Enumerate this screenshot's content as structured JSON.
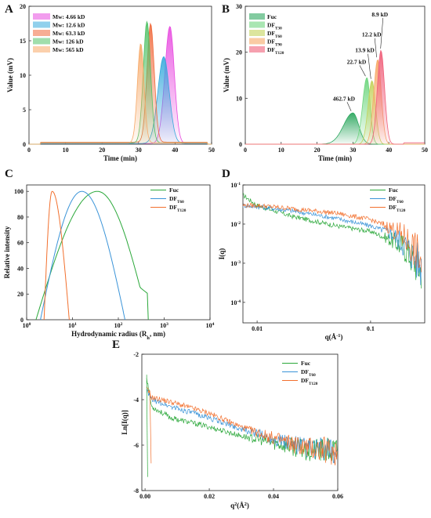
{
  "panels": {
    "A": {
      "label": "A",
      "chart_data": {
        "type": "area",
        "xlabel": "Time (min)",
        "ylabel": "Value (mV)",
        "xlim": [
          0,
          50
        ],
        "ylim": [
          0,
          20
        ],
        "xticks": [
          0,
          10,
          20,
          30,
          40,
          50
        ],
        "yticks": [
          0,
          5,
          10,
          15,
          20
        ],
        "series": [
          {
            "name": "Mw: 4.66 kD",
            "color": "#e84ce0",
            "peak": {
              "x": 38.6,
              "y": 17.0,
              "sl": 1.4,
              "sr": 1.2
            },
            "baseline": 0.1
          },
          {
            "name": "Mw: 12.6 kD",
            "color": "#35a9dc",
            "peak": {
              "x": 36.9,
              "y": 12.6,
              "sl": 1.6,
              "sr": 1.5
            },
            "baseline": 0.1
          },
          {
            "name": "Mw: 63.3 kD",
            "color": "#f06a3c",
            "peak": {
              "x": 33.3,
              "y": 17.2,
              "sl": 1.0,
              "sr": 1.0
            },
            "baseline": 0.3
          },
          {
            "name": "Mw: 126 kD",
            "color": "#52c267",
            "peak": {
              "x": 32.3,
              "y": 17.6,
              "sl": 1.0,
              "sr": 1.0
            },
            "baseline": 0.2
          },
          {
            "name": "Mw: 565 kD",
            "color": "#f7a968",
            "peak": {
              "x": 30.6,
              "y": 14.4,
              "sl": 0.9,
              "sr": 0.9
            },
            "baseline": 0.2
          }
        ]
      }
    },
    "B": {
      "label": "B",
      "chart_data": {
        "type": "area",
        "xlabel": "Time (min)",
        "ylabel": "Value (mV)",
        "xlim": [
          0,
          50
        ],
        "ylim": [
          0,
          30
        ],
        "xticks": [
          0,
          10,
          20,
          30,
          40,
          50
        ],
        "yticks": [
          0,
          10,
          20,
          30
        ],
        "series": [
          {
            "name": "Fuc",
            "sub": "",
            "color": "#2ea860",
            "peak": {
              "x": 30.0,
              "y": 6.8,
              "sl": 2.6,
              "sr": 1.6
            },
            "annotation": "462.7 kD"
          },
          {
            "name": "DF",
            "sub": "T30",
            "color": "#6fd67f",
            "peak": {
              "x": 33.9,
              "y": 14.5,
              "sl": 1.2,
              "sr": 0.9
            },
            "annotation": "22.7 kD"
          },
          {
            "name": "DF",
            "sub": "T60",
            "color": "#c4d45e",
            "peak": {
              "x": 35.3,
              "y": 13.8,
              "sl": 1.1,
              "sr": 1.0
            },
            "annotation": "13.9 kD"
          },
          {
            "name": "DF",
            "sub": "T90",
            "color": "#f7a968",
            "peak": {
              "x": 36.9,
              "y": 18.4,
              "sl": 1.1,
              "sr": 1.0
            },
            "annotation": "12.2 kD"
          },
          {
            "name": "DF",
            "sub": "T120",
            "color": "#f0607a",
            "peak": {
              "x": 37.8,
              "y": 20.4,
              "sl": 1.0,
              "sr": 1.0
            },
            "annotation": "8.9 kD"
          }
        ]
      }
    },
    "C": {
      "label": "C",
      "chart_data": {
        "type": "line",
        "xlabel": "Hydrodynamic radius (R",
        "xlabel_sub": "h",
        "xlabel_end": ", nm)",
        "ylabel": "Relative intensity",
        "xscale": "log",
        "xlim": [
          1,
          10000
        ],
        "ylim": [
          0,
          105
        ],
        "xticks": [
          "10",
          "10",
          "10",
          "10",
          "10"
        ],
        "xtick_exp": [
          "0",
          "1",
          "2",
          "3",
          "4"
        ],
        "yticks": [
          0,
          20,
          40,
          60,
          80,
          100
        ],
        "series": [
          {
            "name": "Fuc",
            "sub": "",
            "color": "#2ba83a",
            "peak_x": 35,
            "peak_y": 100,
            "range": [
              1.6,
              450
            ]
          },
          {
            "name": "DF",
            "sub": "T60",
            "color": "#3b94d8",
            "peak_x": 16,
            "peak_y": 100,
            "range": [
              2.0,
              140
            ]
          },
          {
            "name": "DF",
            "sub": "T120",
            "color": "#f2702e",
            "peak_x": 3.6,
            "peak_y": 100,
            "range": [
              2.4,
              8.5
            ]
          }
        ]
      }
    },
    "D": {
      "label": "D",
      "chart_data": {
        "type": "line",
        "xlabel": "q(Å",
        "xlabel_sup": "-1",
        "xlabel_end": ")",
        "ylabel": "I(q)",
        "xscale": "log",
        "yscale": "log",
        "xlim": [
          0.0075,
          0.3
        ],
        "ylim": [
          3e-05,
          0.1
        ],
        "xtick_labels": [
          "0.01",
          "0.1"
        ],
        "yticks": [
          "10",
          "10",
          "10",
          "10"
        ],
        "ytick_exp": [
          "-1",
          "-2",
          "-3",
          "-4"
        ],
        "series": [
          {
            "name": "Fuc",
            "sub": "",
            "color": "#2ba83a",
            "points": [
              [
                0.0075,
                0.055
              ],
              [
                0.01,
                0.03
              ],
              [
                0.02,
                0.016
              ],
              [
                0.05,
                0.009
              ],
              [
                0.1,
                0.0065
              ],
              [
                0.15,
                0.004
              ],
              [
                0.2,
                0.0025
              ],
              [
                0.25,
                0.001
              ],
              [
                0.28,
                0.0007
              ]
            ]
          },
          {
            "name": "DF",
            "sub": "T60",
            "color": "#3b94d8",
            "points": [
              [
                0.0075,
                0.03
              ],
              [
                0.01,
                0.028
              ],
              [
                0.02,
                0.022
              ],
              [
                0.05,
                0.014
              ],
              [
                0.1,
                0.009
              ],
              [
                0.15,
                0.006
              ],
              [
                0.2,
                0.003
              ],
              [
                0.25,
                0.0013
              ],
              [
                0.28,
                0.0008
              ]
            ]
          },
          {
            "name": "DF",
            "sub": "T120",
            "color": "#f2702e",
            "points": [
              [
                0.0075,
                0.03
              ],
              [
                0.01,
                0.03
              ],
              [
                0.02,
                0.025
              ],
              [
                0.05,
                0.019
              ],
              [
                0.1,
                0.013
              ],
              [
                0.15,
                0.008
              ],
              [
                0.2,
                0.0045
              ],
              [
                0.25,
                0.002
              ],
              [
                0.28,
                0.001
              ]
            ]
          }
        ]
      }
    },
    "E": {
      "label": "E",
      "chart_data": {
        "type": "line",
        "xlabel": "q",
        "xlabel_sup": "2",
        "xlabel_end": "(Å",
        "xlabel_sup2": "2",
        "xlabel_close": ")",
        "ylabel": "Ln[I(q)]",
        "xlim": [
          -0.001,
          0.06
        ],
        "ylim": [
          -8,
          -2
        ],
        "xticks": [
          "0.00",
          "0.02",
          "0.04",
          "0.06"
        ],
        "yticks": [
          "-2",
          "-4",
          "-6",
          "-8"
        ],
        "series": [
          {
            "name": "Fuc",
            "sub": "",
            "color": "#2ba83a",
            "points": [
              [
                0.0005,
                -3.0
              ],
              [
                0.002,
                -4.3
              ],
              [
                0.008,
                -4.8
              ],
              [
                0.02,
                -5.2
              ],
              [
                0.03,
                -5.6
              ],
              [
                0.04,
                -5.9
              ],
              [
                0.05,
                -6.2
              ],
              [
                0.06,
                -6.3
              ]
            ]
          },
          {
            "name": "DF",
            "sub": "T60",
            "color": "#3b94d8",
            "points": [
              [
                0.0005,
                -3.6
              ],
              [
                0.002,
                -4.0
              ],
              [
                0.008,
                -4.3
              ],
              [
                0.02,
                -4.8
              ],
              [
                0.03,
                -5.3
              ],
              [
                0.04,
                -5.7
              ],
              [
                0.05,
                -6.1
              ],
              [
                0.06,
                -6.3
              ]
            ]
          },
          {
            "name": "DF",
            "sub": "T120",
            "color": "#f2702e",
            "points": [
              [
                0.0005,
                -3.5
              ],
              [
                0.002,
                -3.9
              ],
              [
                0.008,
                -4.1
              ],
              [
                0.02,
                -4.6
              ],
              [
                0.03,
                -5.2
              ],
              [
                0.04,
                -5.7
              ],
              [
                0.05,
                -6.1
              ],
              [
                0.06,
                -6.3
              ]
            ]
          }
        ]
      }
    }
  }
}
